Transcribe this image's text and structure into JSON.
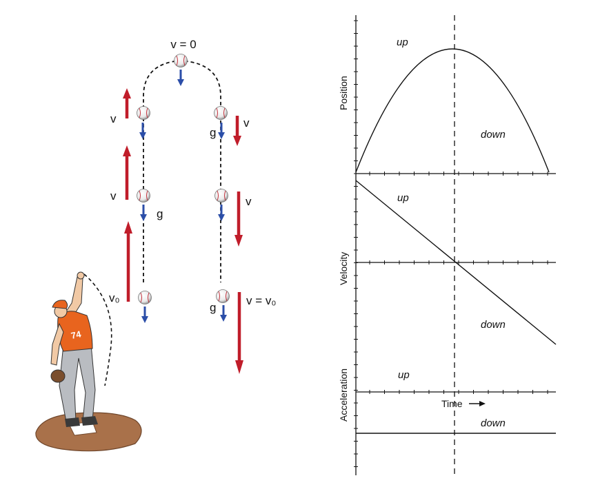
{
  "left_diagram": {
    "top_label": "v = 0",
    "velocity_label": "v",
    "gravity_label": "g",
    "initial_velocity_label": "v₀",
    "final_velocity_label": "v = v₀",
    "jersey_number": "74"
  },
  "graphs": {
    "position": {
      "ylabel": "Position",
      "up_label": "up",
      "down_label": "down"
    },
    "velocity": {
      "ylabel": "Velocity",
      "up_label": "up",
      "down_label": "down"
    },
    "acceleration": {
      "ylabel": "Acceleration",
      "up_label": "up",
      "down_label": "down",
      "xlabel": "Time"
    }
  },
  "colors": {
    "velocity_arrow": "#c01d2a",
    "gravity_arrow": "#2b4ea8",
    "jersey": "#e8641e",
    "mound": "#a9714a"
  }
}
